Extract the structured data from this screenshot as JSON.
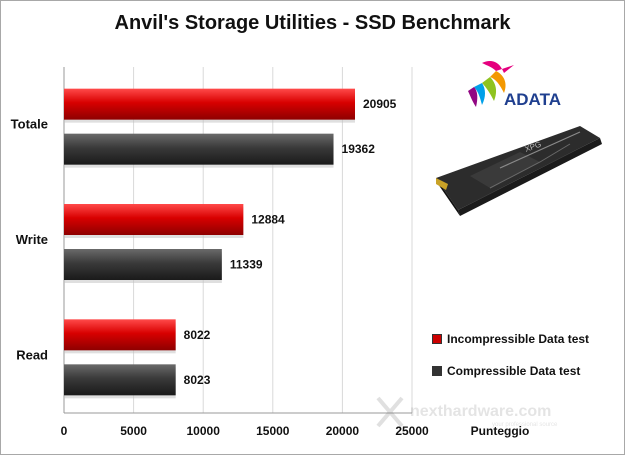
{
  "title": "Anvil's Storage Utilities - SSD Benchmark",
  "chart_data": {
    "type": "bar",
    "orientation": "horizontal",
    "categories": [
      "Totale",
      "Write",
      "Read"
    ],
    "series": [
      {
        "name": "Incompressible Data test",
        "color": "#cc0000",
        "values": [
          20905,
          12884,
          8022
        ]
      },
      {
        "name": "Compressible Data test",
        "color": "#333333",
        "values": [
          19362,
          11339,
          8023
        ]
      }
    ],
    "xlabel": "Punteggio",
    "xlim": [
      0,
      25000
    ],
    "xticks": [
      0,
      5000,
      10000,
      15000,
      20000,
      25000
    ],
    "grid": true,
    "legend": "bottom-right"
  },
  "logo": {
    "brand": "ADATA"
  },
  "product": {
    "brand": "XPG"
  },
  "watermark": {
    "text": "nexthardware.com",
    "tagline": "your professional source"
  }
}
